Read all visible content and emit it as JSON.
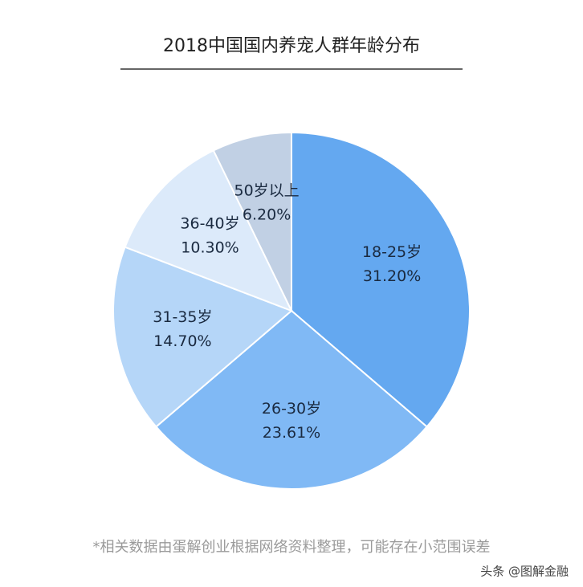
{
  "chart_data": {
    "type": "pie",
    "title": "2018中国国内养宠人群年龄分布",
    "categories": [
      "18-25岁",
      "26-30岁",
      "31-35岁",
      "36-40岁",
      "50岁以上"
    ],
    "values": [
      31.2,
      23.61,
      14.7,
      10.3,
      6.2
    ],
    "value_labels": [
      "31.20%",
      "23.61%",
      "14.70%",
      "10.30%",
      "6.20%"
    ],
    "colors": [
      "#64a8f0",
      "#80b9f5",
      "#b5d6f8",
      "#dceafa",
      "#c1d0e4"
    ],
    "footnote": "*相关数据由蛋解创业根据网络资料整理，可能存在小范围误差"
  },
  "watermark": "头条 @图解金融"
}
